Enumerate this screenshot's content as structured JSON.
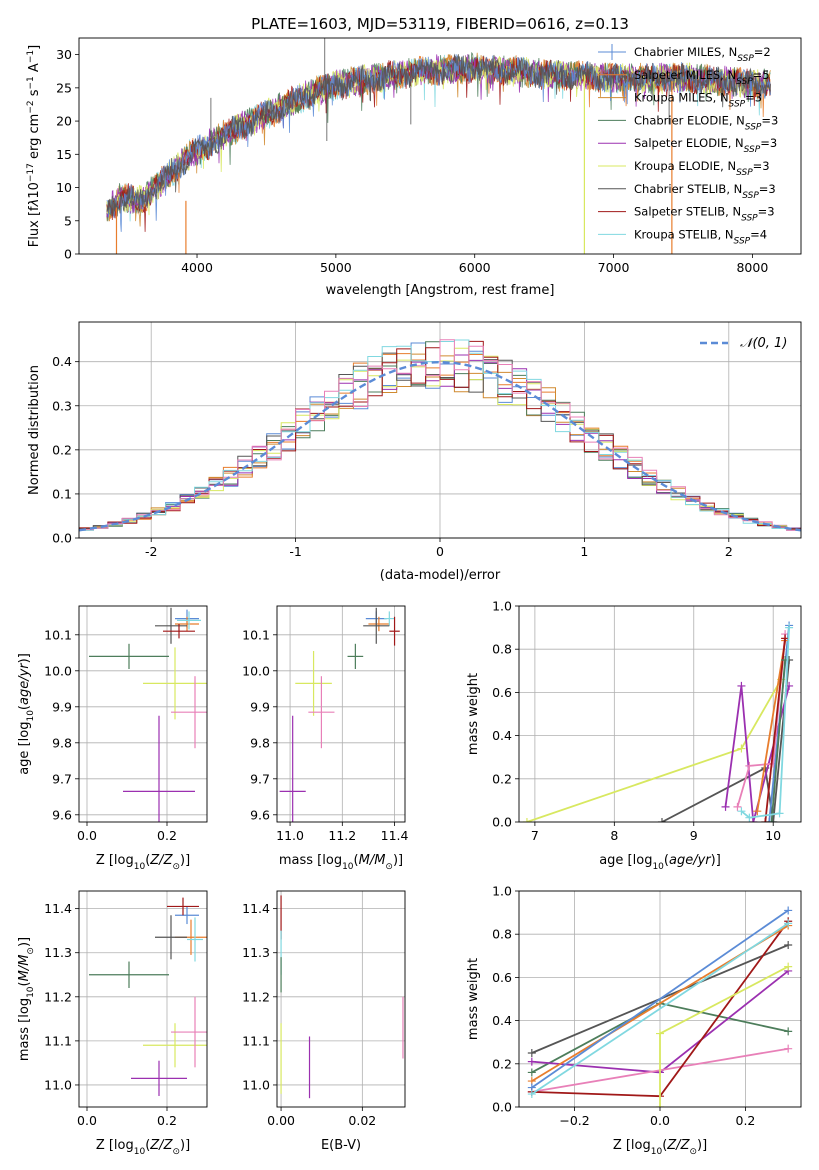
{
  "figure_title": "PLATE=1603, MJD=53119, FIBERID=0616, z=0.13",
  "colors": {
    "chabrier_miles": "#5b8bd6",
    "salpeter_miles": "#e87d2d",
    "kroupa_miles": "#d08a30",
    "chabrier_elodie": "#4d7d5b",
    "salpeter_elodie": "#9b30b0",
    "kroupa_elodie": "#d8e860",
    "chabrier_stelib": "#555555",
    "salpeter_stelib": "#a01818",
    "kroupa_stelib": "#80d8e0",
    "pink": "#e880b8",
    "normal": "#5b8bd6"
  },
  "chart_data": [
    {
      "id": "spectrum",
      "type": "line",
      "xlabel": "wavelength [Angstrom, rest frame]",
      "ylabel": "Flux [fλ10⁻¹⁷ erg cm⁻² s⁻¹ A⁻¹]",
      "xlim": [
        3150,
        8350
      ],
      "ylim": [
        0,
        32.5
      ],
      "xticks": [
        4000,
        5000,
        6000,
        7000,
        8000
      ],
      "yticks": [
        0,
        5,
        10,
        15,
        20,
        25,
        30
      ],
      "grid": false,
      "legend_position": "top-right",
      "continuum_anchors": [
        [
          3350,
          6.5
        ],
        [
          3450,
          8.5
        ],
        [
          3600,
          8
        ],
        [
          3700,
          10
        ],
        [
          3850,
          13
        ],
        [
          3950,
          15
        ],
        [
          4050,
          16
        ],
        [
          4200,
          18
        ],
        [
          4400,
          20
        ],
        [
          4600,
          22
        ],
        [
          4800,
          24
        ],
        [
          5000,
          25.5
        ],
        [
          5300,
          26.5
        ],
        [
          5600,
          27.5
        ],
        [
          6000,
          28
        ],
        [
          6300,
          27.5
        ],
        [
          6600,
          27
        ],
        [
          7000,
          26.5
        ],
        [
          7500,
          26.5
        ],
        [
          7800,
          26
        ],
        [
          8100,
          25.5
        ]
      ],
      "spikes": [
        [
          4920,
          32.5
        ],
        [
          4935,
          17
        ],
        [
          4100,
          23.5
        ],
        [
          5250,
          23
        ],
        [
          5540,
          19.5
        ],
        [
          7400,
          19.5
        ]
      ],
      "drops": [
        [
          3920,
          8
        ],
        [
          6790,
          27
        ],
        [
          3420,
          7
        ],
        [
          7420,
          26
        ]
      ],
      "series": [
        {
          "name": "Chabrier MILES, N",
          "ssp": "=2",
          "color_key": "chabrier_miles"
        },
        {
          "name": "Salpeter MILES, N",
          "ssp": "=5",
          "color_key": "salpeter_miles"
        },
        {
          "name": "Kroupa MILES, N",
          "ssp": "=3",
          "color_key": "kroupa_miles"
        },
        {
          "name": "Chabrier ELODIE, N",
          "ssp": "=3",
          "color_key": "chabrier_elodie"
        },
        {
          "name": "Salpeter ELODIE, N",
          "ssp": "=3",
          "color_key": "salpeter_elodie"
        },
        {
          "name": "Kroupa ELODIE, N",
          "ssp": "=3",
          "color_key": "kroupa_elodie"
        },
        {
          "name": "Chabrier STELIB, N",
          "ssp": "=3",
          "color_key": "chabrier_stelib"
        },
        {
          "name": "Salpeter STELIB, N",
          "ssp": "=3",
          "color_key": "salpeter_stelib"
        },
        {
          "name": "Kroupa STELIB, N",
          "ssp": "=4",
          "color_key": "kroupa_stelib"
        }
      ]
    },
    {
      "id": "residuals",
      "type": "histogram",
      "xlabel": "(data-model)/error",
      "ylabel": "Normed distribution",
      "xlim": [
        -2.5,
        2.5
      ],
      "ylim": [
        0,
        0.49
      ],
      "xticks": [
        -2,
        -1,
        0,
        1,
        2
      ],
      "yticks": [
        0.0,
        0.1,
        0.2,
        0.3,
        0.4
      ],
      "grid": true,
      "bin_width": 0.1,
      "normal_label": "𝒩(0, 1)",
      "legend_position": "top-right",
      "series_colors": [
        "chabrier_miles",
        "salpeter_miles",
        "kroupa_miles",
        "chabrier_elodie",
        "salpeter_elodie",
        "kroupa_elodie",
        "chabrier_stelib",
        "salpeter_stelib",
        "kroupa_stelib",
        "pink"
      ]
    },
    {
      "id": "age_vs_Z",
      "type": "errorbar",
      "xlabel": "Z [log10(Z/Z⊙)]",
      "ylabel": "age  [log10(age/yr)]",
      "xlim": [
        -0.02,
        0.3
      ],
      "ylim": [
        9.58,
        10.18
      ],
      "xticks": [
        0.0,
        0.2
      ],
      "yticks": [
        9.6,
        9.7,
        9.8,
        9.9,
        10.0,
        10.1
      ],
      "grid": true,
      "points": [
        {
          "x": 0.25,
          "y": 10.145,
          "xerr": 0.03,
          "yerr": 0.025,
          "color_key": "chabrier_miles"
        },
        {
          "x": 0.25,
          "y": 10.13,
          "xerr": 0.03,
          "yerr": 0.02,
          "color_key": "salpeter_miles"
        },
        {
          "x": 0.255,
          "y": 10.14,
          "xerr": 0.03,
          "yerr": 0.025,
          "color_key": "kroupa_stelib"
        },
        {
          "x": 0.21,
          "y": 10.125,
          "xerr": 0.04,
          "yerr": 0.05,
          "color_key": "chabrier_stelib"
        },
        {
          "x": 0.23,
          "y": 10.11,
          "xerr": 0.04,
          "yerr": 0.02,
          "color_key": "salpeter_stelib"
        },
        {
          "x": 0.105,
          "y": 10.04,
          "xerr": 0.1,
          "yerr": 0.035,
          "color_key": "chabrier_elodie"
        },
        {
          "x": 0.22,
          "y": 9.965,
          "xerr": 0.08,
          "yerr": 0.1,
          "color_key": "kroupa_elodie"
        },
        {
          "x": 0.27,
          "y": 9.885,
          "xerr": 0.06,
          "yerr": 0.1,
          "color_key": "pink"
        },
        {
          "x": 0.18,
          "y": 9.665,
          "xerr": 0.09,
          "yerr": 0.21,
          "color_key": "salpeter_elodie"
        }
      ]
    },
    {
      "id": "age_vs_mass",
      "type": "errorbar",
      "xlabel": "mass [log10(M/M⊙)]",
      "ylabel": "",
      "xlim": [
        10.95,
        11.44
      ],
      "ylim": [
        9.58,
        10.18
      ],
      "xticks": [
        11.0,
        11.2,
        11.4
      ],
      "yticks": [
        9.6,
        9.7,
        9.8,
        9.9,
        10.0,
        10.1
      ],
      "grid": true,
      "points": [
        {
          "x": 11.33,
          "y": 10.145,
          "xerr": 0.04,
          "yerr": 0.02,
          "color_key": "chabrier_miles"
        },
        {
          "x": 11.34,
          "y": 10.13,
          "xerr": 0.04,
          "yerr": 0.02,
          "color_key": "salpeter_miles"
        },
        {
          "x": 11.38,
          "y": 10.145,
          "xerr": 0.02,
          "yerr": 0.02,
          "color_key": "kroupa_stelib"
        },
        {
          "x": 11.33,
          "y": 10.125,
          "xerr": 0.05,
          "yerr": 0.05,
          "color_key": "chabrier_stelib"
        },
        {
          "x": 11.4,
          "y": 10.11,
          "xerr": 0.02,
          "yerr": 0.04,
          "color_key": "salpeter_stelib"
        },
        {
          "x": 11.25,
          "y": 10.04,
          "xerr": 0.03,
          "yerr": 0.035,
          "color_key": "chabrier_elodie"
        },
        {
          "x": 11.09,
          "y": 9.965,
          "xerr": 0.07,
          "yerr": 0.09,
          "color_key": "kroupa_elodie"
        },
        {
          "x": 11.12,
          "y": 9.885,
          "xerr": 0.05,
          "yerr": 0.1,
          "color_key": "pink"
        },
        {
          "x": 11.01,
          "y": 9.665,
          "xerr": 0.05,
          "yerr": 0.21,
          "color_key": "salpeter_elodie"
        }
      ]
    },
    {
      "id": "mass_weight_vs_age",
      "type": "line",
      "xlabel": "age  [log10(age/yr)]",
      "ylabel": "mass weight",
      "xlim": [
        6.8,
        10.35
      ],
      "ylim": [
        0,
        1.0
      ],
      "xticks": [
        7,
        8,
        9,
        10
      ],
      "yticks": [
        0.0,
        0.2,
        0.4,
        0.6,
        0.8,
        1.0
      ],
      "grid": true,
      "series": [
        {
          "color_key": "kroupa_elodie",
          "points": [
            [
              6.9,
              0.0
            ],
            [
              9.6,
              0.34
            ],
            [
              10.1,
              0.66
            ]
          ]
        },
        {
          "color_key": "chabrier_stelib",
          "points": [
            [
              8.6,
              0.0
            ],
            [
              9.9,
              0.25
            ],
            [
              10.0,
              0.0
            ],
            [
              10.2,
              0.75
            ]
          ]
        },
        {
          "color_key": "salpeter_elodie",
          "points": [
            [
              9.4,
              0.07
            ],
            [
              9.6,
              0.63
            ],
            [
              9.75,
              0.0
            ],
            [
              10.2,
              0.63
            ]
          ]
        },
        {
          "color_key": "pink",
          "points": [
            [
              9.55,
              0.07
            ],
            [
              9.7,
              0.26
            ],
            [
              10.0,
              0.27
            ],
            [
              10.15,
              0.87
            ]
          ]
        },
        {
          "color_key": "chabrier_miles",
          "points": [
            [
              9.95,
              0.0
            ],
            [
              10.2,
              0.91
            ]
          ]
        },
        {
          "color_key": "salpeter_miles",
          "points": [
            [
              9.8,
              0.05
            ],
            [
              10.15,
              0.84
            ]
          ]
        },
        {
          "color_key": "salpeter_stelib",
          "points": [
            [
              9.9,
              0.0
            ],
            [
              10.15,
              0.85
            ]
          ]
        },
        {
          "color_key": "chabrier_elodie",
          "points": [
            [
              9.98,
              0.0
            ],
            [
              10.15,
              0.75
            ]
          ]
        },
        {
          "color_key": "kroupa_stelib",
          "points": [
            [
              9.6,
              0.05
            ],
            [
              9.7,
              0.02
            ],
            [
              10.08,
              0.04
            ],
            [
              10.2,
              0.9
            ]
          ]
        }
      ]
    },
    {
      "id": "mass_vs_Z",
      "type": "errorbar",
      "xlabel": "Z [log10(Z/Z⊙)]",
      "ylabel": "mass [log10(M/M⊙)]",
      "xlim": [
        -0.02,
        0.3
      ],
      "ylim": [
        10.95,
        11.44
      ],
      "xticks": [
        0.0,
        0.2
      ],
      "yticks": [
        11.0,
        11.1,
        11.2,
        11.3,
        11.4
      ],
      "grid": true,
      "points": [
        {
          "x": 0.25,
          "y": 11.385,
          "xerr": 0.03,
          "yerr": 0.02,
          "color_key": "chabrier_miles"
        },
        {
          "x": 0.26,
          "y": 11.335,
          "xerr": 0.04,
          "yerr": 0.04,
          "color_key": "salpeter_miles"
        },
        {
          "x": 0.27,
          "y": 11.33,
          "xerr": 0.02,
          "yerr": 0.05,
          "color_key": "kroupa_stelib"
        },
        {
          "x": 0.21,
          "y": 11.335,
          "xerr": 0.04,
          "yerr": 0.05,
          "color_key": "chabrier_stelib"
        },
        {
          "x": 0.24,
          "y": 11.405,
          "xerr": 0.04,
          "yerr": 0.02,
          "color_key": "salpeter_stelib"
        },
        {
          "x": 0.105,
          "y": 11.25,
          "xerr": 0.1,
          "yerr": 0.03,
          "color_key": "chabrier_elodie"
        },
        {
          "x": 0.22,
          "y": 11.09,
          "xerr": 0.08,
          "yerr": 0.05,
          "color_key": "kroupa_elodie"
        },
        {
          "x": 0.27,
          "y": 11.12,
          "xerr": 0.06,
          "yerr": 0.08,
          "color_key": "pink"
        },
        {
          "x": 0.18,
          "y": 11.015,
          "xerr": 0.07,
          "yerr": 0.04,
          "color_key": "salpeter_elodie"
        }
      ]
    },
    {
      "id": "mass_vs_ebv",
      "type": "errorbar",
      "xlabel": "E(B-V)",
      "ylabel": "",
      "xlim": [
        -0.001,
        0.0305
      ],
      "ylim": [
        10.95,
        11.44
      ],
      "xticks": [
        0.0,
        0.02
      ],
      "yticks": [
        11.0,
        11.1,
        11.2,
        11.3,
        11.4
      ],
      "grid": true,
      "points": [
        {
          "x": 0.0,
          "y": 11.38,
          "xerr": 0,
          "yerr": 0.05,
          "color_key": "salpeter_stelib"
        },
        {
          "x": 0.0,
          "y": 11.3,
          "xerr": 0,
          "yerr": 0.05,
          "color_key": "kroupa_stelib"
        },
        {
          "x": 0.0,
          "y": 11.25,
          "xerr": 0,
          "yerr": 0.04,
          "color_key": "chabrier_elodie"
        },
        {
          "x": 0.0,
          "y": 11.06,
          "xerr": 0,
          "yerr": 0.08,
          "color_key": "kroupa_elodie"
        },
        {
          "x": 0.007,
          "y": 11.04,
          "xerr": 0,
          "yerr": 0.07,
          "color_key": "salpeter_elodie"
        },
        {
          "x": 0.03,
          "y": 11.13,
          "xerr": 0,
          "yerr": 0.07,
          "color_key": "pink"
        }
      ]
    },
    {
      "id": "mass_weight_vs_Z",
      "type": "line",
      "xlabel": "Z [log10(Z/Z⊙)]",
      "ylabel": "mass weight",
      "xlim": [
        -0.33,
        0.33
      ],
      "ylim": [
        0,
        1.0
      ],
      "xticks": [
        -0.2,
        0.0,
        0.2
      ],
      "yticks": [
        0.0,
        0.2,
        0.4,
        0.6,
        0.8,
        1.0
      ],
      "grid": true,
      "series": [
        {
          "color_key": "chabrier_stelib",
          "points": [
            [
              -0.3,
              0.25
            ],
            [
              0.3,
              0.75
            ]
          ]
        },
        {
          "color_key": "chabrier_elodie",
          "points": [
            [
              -0.3,
              0.16
            ],
            [
              0.0,
              0.48
            ],
            [
              0.3,
              0.35
            ]
          ]
        },
        {
          "color_key": "salpeter_elodie",
          "points": [
            [
              -0.3,
              0.21
            ],
            [
              0.0,
              0.16
            ],
            [
              0.3,
              0.63
            ]
          ]
        },
        {
          "color_key": "pink",
          "points": [
            [
              -0.3,
              0.07
            ],
            [
              0.3,
              0.27
            ]
          ]
        },
        {
          "color_key": "salpeter_stelib",
          "points": [
            [
              -0.3,
              0.07
            ],
            [
              0.0,
              0.05
            ],
            [
              0.3,
              0.86
            ]
          ]
        },
        {
          "color_key": "salpeter_miles",
          "points": [
            [
              -0.3,
              0.12
            ],
            [
              0.3,
              0.84
            ]
          ]
        },
        {
          "color_key": "chabrier_miles",
          "points": [
            [
              -0.3,
              0.09
            ],
            [
              0.3,
              0.91
            ]
          ]
        },
        {
          "color_key": "kroupa_stelib",
          "points": [
            [
              -0.3,
              0.06
            ],
            [
              0.3,
              0.85
            ]
          ]
        },
        {
          "color_key": "kroupa_elodie",
          "points": [
            [
              0.0,
              0.0
            ],
            [
              0.0,
              0.34
            ],
            [
              0.3,
              0.65
            ]
          ]
        }
      ]
    }
  ]
}
